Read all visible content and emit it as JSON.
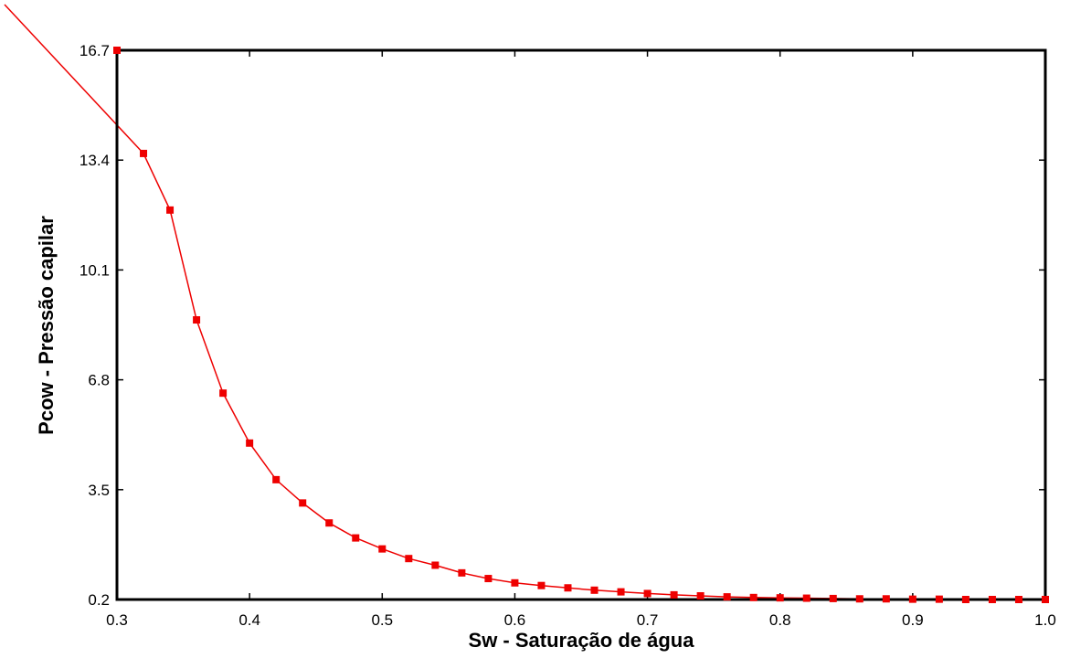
{
  "chart_data": {
    "type": "line",
    "title": "",
    "xlabel": "Sw - Saturação de água",
    "ylabel": "Pcow - Pressão capilar",
    "xlim": [
      0.3,
      1.0
    ],
    "ylim": [
      0.2,
      16.7
    ],
    "xticks": [
      0.3,
      0.4,
      0.5,
      0.6,
      0.7,
      0.8,
      0.9,
      1.0
    ],
    "xtick_labels": [
      "0.3",
      "0.4",
      "0.5",
      "0.6",
      "0.7",
      "0.8",
      "0.9",
      "1.0"
    ],
    "yticks": [
      0.2,
      3.5,
      6.8,
      10.1,
      13.4,
      16.7
    ],
    "ytick_labels": [
      "0.2",
      "3.5",
      "6.8",
      "10.1",
      "13.4",
      "16.7"
    ],
    "grid": false,
    "color": "#ee0000",
    "series": [
      {
        "x": [
          0.32,
          0.34,
          0.36,
          0.38,
          0.4,
          0.42,
          0.44,
          0.46,
          0.48,
          0.5,
          0.52,
          0.54,
          0.56,
          0.58,
          0.6,
          0.62,
          0.64,
          0.66,
          0.68,
          0.7,
          0.72,
          0.74,
          0.76,
          0.78,
          0.8,
          0.82,
          0.84,
          0.86,
          0.88,
          0.9,
          0.92,
          0.94,
          0.96,
          0.98
        ],
        "y": [
          13.6,
          11.9,
          8.6,
          6.4,
          4.9,
          3.8,
          3.1,
          2.5,
          2.05,
          1.72,
          1.43,
          1.23,
          1.0,
          0.83,
          0.7,
          0.62,
          0.55,
          0.48,
          0.43,
          0.38,
          0.34,
          0.31,
          0.28,
          0.26,
          0.25,
          0.24,
          0.23,
          0.22,
          0.22,
          0.21,
          0.21,
          0.2,
          0.2,
          0.2
        ]
      }
    ],
    "extra_markers": [
      {
        "x": 0.3,
        "y": 16.7
      },
      {
        "x": 1.0,
        "y": 0.2
      }
    ]
  }
}
